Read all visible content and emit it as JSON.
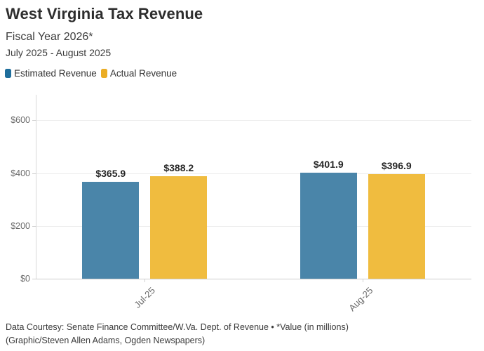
{
  "header": {
    "title": "West Virginia Tax Revenue",
    "subtitle": "Fiscal Year 2026*",
    "date_range": "July 2025 - August 2025"
  },
  "legend": {
    "items": [
      {
        "label": "Estimated Revenue",
        "color": "#1F6E9C"
      },
      {
        "label": "Actual Revenue",
        "color": "#EBAD24"
      }
    ]
  },
  "chart_data": {
    "type": "bar",
    "title": "West Virginia Tax Revenue",
    "subtitle": "Fiscal Year 2026*",
    "date_range": "July 2025 - August 2025",
    "unit_note": "*Value (in millions)",
    "categories": [
      "Jul-25",
      "Aug-25"
    ],
    "series": [
      {
        "name": "Estimated Revenue",
        "legend_color": "#1F6E9C",
        "bar_color": "#4A85A9",
        "values": [
          365.9,
          401.9
        ],
        "value_labels": [
          "$365.9",
          "$401.9"
        ]
      },
      {
        "name": "Actual Revenue",
        "legend_color": "#EBAD24",
        "bar_color": "#F0BC3F",
        "values": [
          388.2,
          396.9
        ],
        "value_labels": [
          "$388.2",
          "$396.9"
        ]
      }
    ],
    "y_axis": {
      "ticks": [
        0,
        200,
        400,
        600
      ],
      "tick_labels": [
        "$0",
        "$200",
        "$400",
        "$600"
      ],
      "min": 0,
      "max": 697
    },
    "grid": true,
    "legend_position": "top-left"
  },
  "footer": {
    "line1": "Data Courtesy: Senate Finance Committee/W.Va. Dept. of Revenue • *Value (in millions)",
    "line2": "(Graphic/Steven Allen Adams, Ogden Newspapers)"
  }
}
